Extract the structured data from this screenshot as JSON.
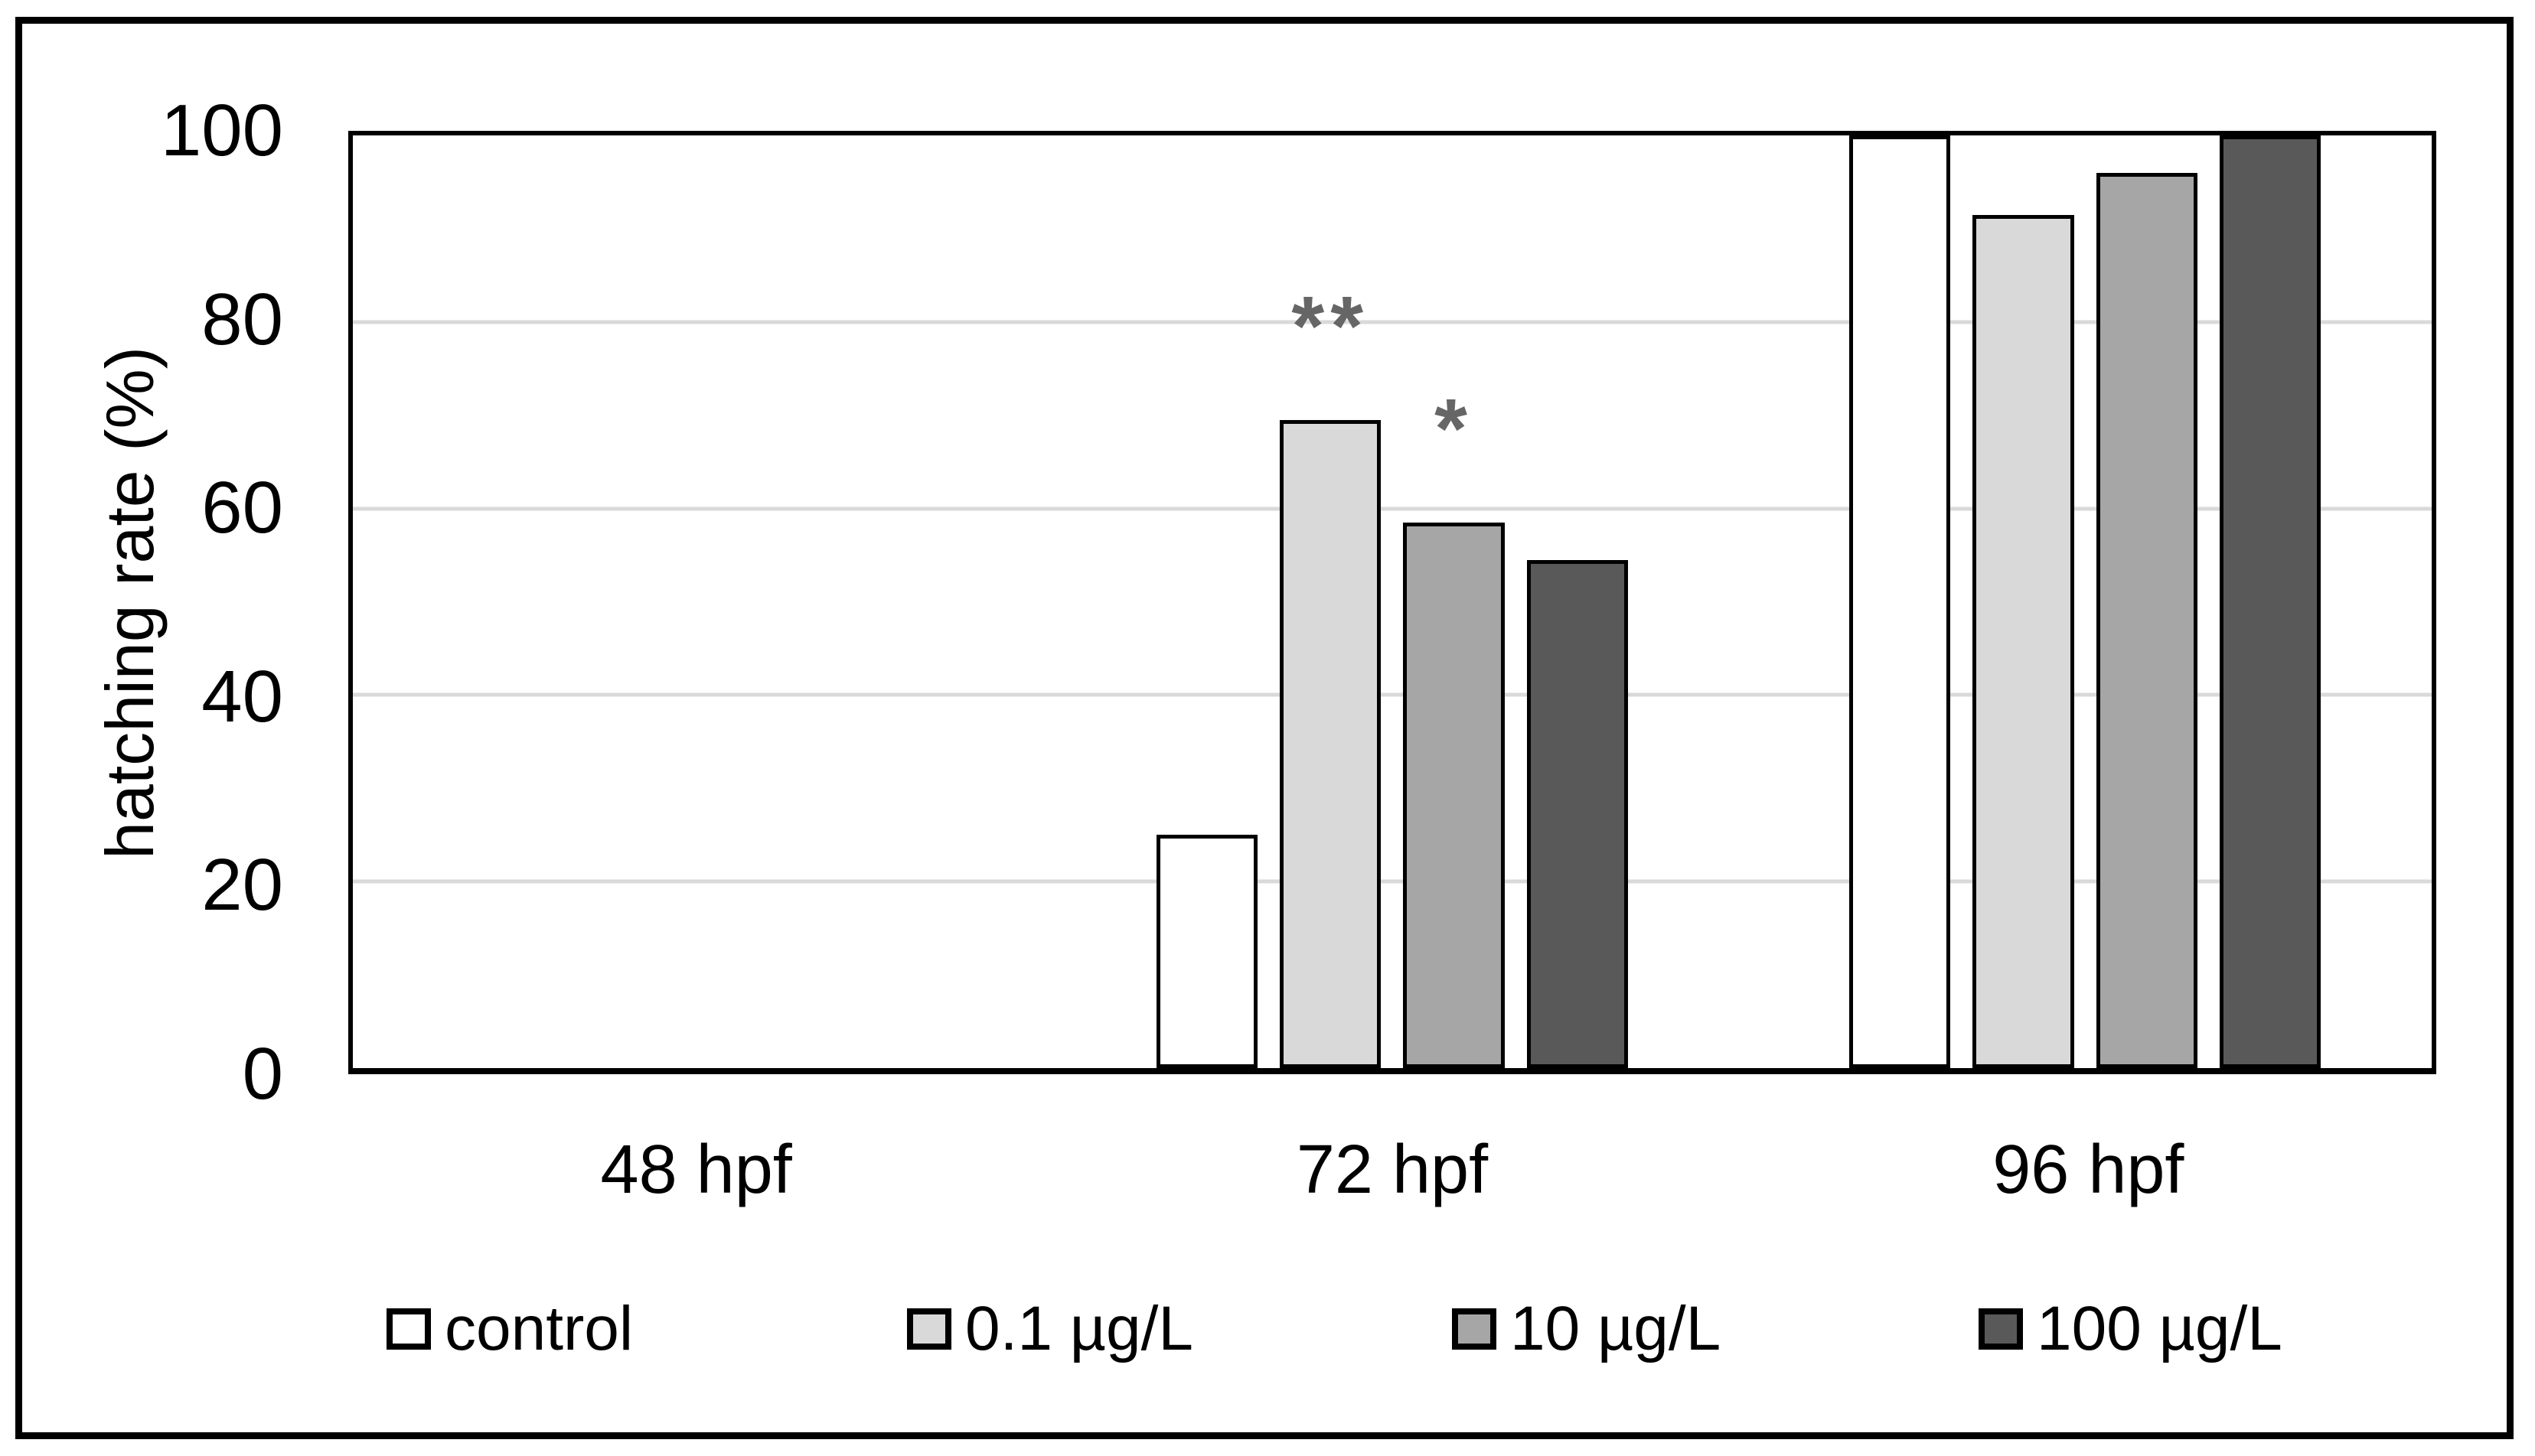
{
  "chart_data": {
    "type": "bar",
    "title": "",
    "xlabel": "",
    "ylabel": "hatching rate (%)",
    "categories": [
      "48 hpf",
      "72 hpf",
      "96 hpf"
    ],
    "series": [
      {
        "name": "control",
        "color": "#ffffff",
        "values": [
          0,
          25,
          100
        ]
      },
      {
        "name": "0.1 µg/L",
        "color": "#d9d9d9",
        "values": [
          0,
          69.5,
          91.5
        ]
      },
      {
        "name": "10 µg/L",
        "color": "#a6a6a6",
        "values": [
          0,
          58.5,
          96
        ]
      },
      {
        "name": "100 µg/L",
        "color": "#595959",
        "values": [
          0,
          54.5,
          100
        ]
      }
    ],
    "ylim": [
      0,
      100
    ],
    "yticks": [
      0,
      20,
      40,
      60,
      80,
      100
    ],
    "grid": true,
    "gridline_color": "#d9d9d9",
    "bar_border_color": "#000000",
    "plot_border_color": "#000000",
    "legend_position": "bottom",
    "annotations": [
      {
        "text": "**",
        "category_index": 1,
        "series_index": 1
      },
      {
        "text": "*",
        "category_index": 1,
        "series_index": 2
      }
    ],
    "annotation_color": "#666666"
  }
}
